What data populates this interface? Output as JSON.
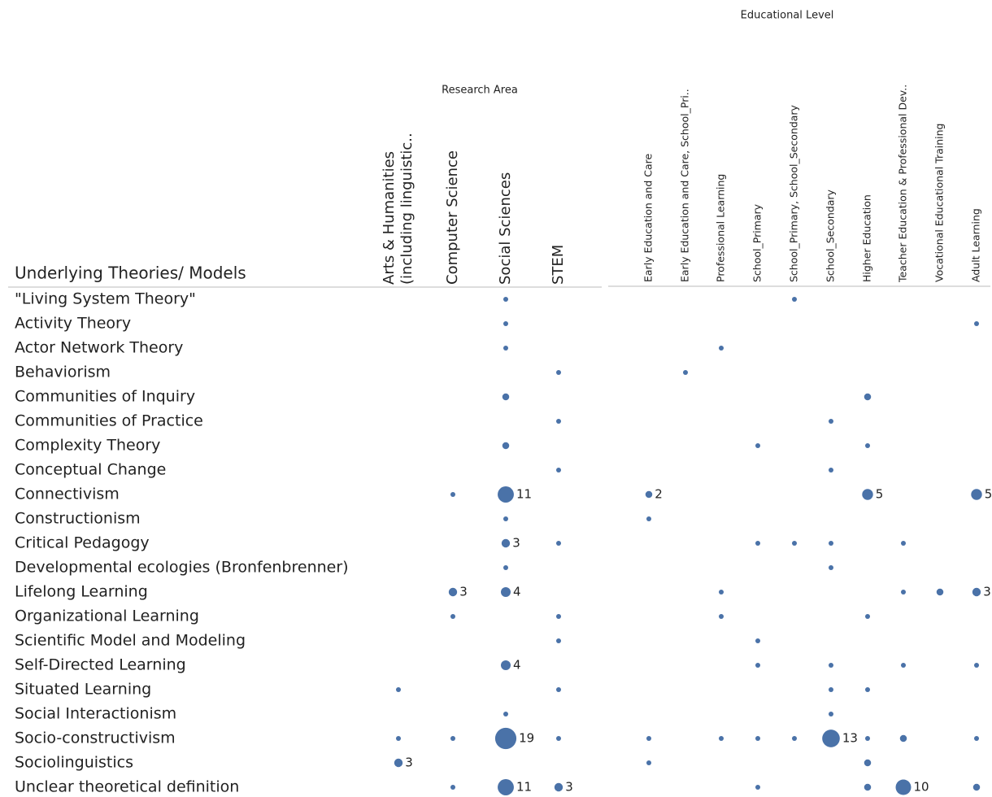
{
  "chart_data": {
    "type": "bubble-matrix",
    "row_header": "Underlying Theories/ Models",
    "color": "#4a72a8",
    "rows": [
      "\"Living System Theory\"",
      "Activity Theory",
      "Actor Network Theory",
      "Behaviorism",
      "Communities of Inquiry",
      "Communities of Practice",
      "Complexity Theory",
      "Conceptual Change",
      "Connectivism",
      "Constructionism",
      "Critical Pedagogy",
      "Developmental ecologies (Bronfenbrenner)",
      "Lifelong Learning",
      "Organizational Learning",
      "Scientific Model and Modeling",
      "Self-Directed Learning",
      "Situated Learning",
      "Social Interactionism",
      "Socio-constructivism",
      "Sociolinguistics",
      "Unclear theoretical definition"
    ],
    "panels": [
      {
        "title": "Research Area",
        "columns": [
          [
            "Arts & Humanities",
            "(including linguistic.."
          ],
          "Computer Science",
          "Social Sciences",
          "STEM"
        ],
        "values": [
          [
            null,
            null,
            1,
            null
          ],
          [
            null,
            null,
            1,
            null
          ],
          [
            null,
            null,
            1,
            null
          ],
          [
            null,
            null,
            null,
            1
          ],
          [
            null,
            null,
            2,
            null
          ],
          [
            null,
            null,
            null,
            1
          ],
          [
            null,
            null,
            2,
            null
          ],
          [
            null,
            null,
            null,
            1
          ],
          [
            null,
            1,
            11,
            null
          ],
          [
            null,
            null,
            1,
            null
          ],
          [
            null,
            null,
            3,
            1
          ],
          [
            null,
            null,
            1,
            null
          ],
          [
            null,
            3,
            4,
            null
          ],
          [
            null,
            1,
            null,
            1
          ],
          [
            null,
            null,
            null,
            1
          ],
          [
            null,
            null,
            4,
            null
          ],
          [
            1,
            null,
            null,
            1
          ],
          [
            null,
            null,
            1,
            null
          ],
          [
            1,
            1,
            19,
            1
          ],
          [
            3,
            null,
            null,
            null
          ],
          [
            null,
            1,
            11,
            3
          ]
        ],
        "value_labels": [
          [
            null,
            null,
            null,
            null
          ],
          [
            null,
            null,
            null,
            null
          ],
          [
            null,
            null,
            null,
            null
          ],
          [
            null,
            null,
            null,
            null
          ],
          [
            null,
            null,
            null,
            null
          ],
          [
            null,
            null,
            null,
            null
          ],
          [
            null,
            null,
            null,
            null
          ],
          [
            null,
            null,
            null,
            null
          ],
          [
            null,
            null,
            "11",
            null
          ],
          [
            null,
            null,
            null,
            null
          ],
          [
            null,
            null,
            "3",
            null
          ],
          [
            null,
            null,
            null,
            null
          ],
          [
            null,
            "3",
            "4",
            null
          ],
          [
            null,
            null,
            null,
            null
          ],
          [
            null,
            null,
            null,
            null
          ],
          [
            null,
            null,
            "4",
            null
          ],
          [
            null,
            null,
            null,
            null
          ],
          [
            null,
            null,
            null,
            null
          ],
          [
            null,
            null,
            "19",
            null
          ],
          [
            "3",
            null,
            null,
            null
          ],
          [
            null,
            null,
            "11",
            "3"
          ]
        ]
      },
      {
        "title": "Educational Level",
        "columns": [
          "Early Education and Care",
          "Early Education and Care, School_Pri..",
          "Professional Learning",
          "School_Primary",
          "School_Primary, School_Secondary",
          "School_Secondary",
          "Higher Education",
          "Teacher Education & Professional Dev..",
          "Vocational Educational Training",
          "Adult Learning"
        ],
        "values": [
          [
            null,
            null,
            null,
            null,
            1,
            null,
            null,
            null,
            null,
            null
          ],
          [
            null,
            null,
            null,
            null,
            null,
            null,
            null,
            null,
            null,
            1
          ],
          [
            null,
            null,
            1,
            null,
            null,
            null,
            null,
            null,
            null,
            null
          ],
          [
            null,
            1,
            null,
            null,
            null,
            null,
            null,
            null,
            null,
            null
          ],
          [
            null,
            null,
            null,
            null,
            null,
            null,
            2,
            null,
            null,
            null
          ],
          [
            null,
            null,
            null,
            null,
            null,
            1,
            null,
            null,
            null,
            null
          ],
          [
            null,
            null,
            null,
            1,
            null,
            null,
            1,
            null,
            null,
            null
          ],
          [
            null,
            null,
            null,
            null,
            null,
            1,
            null,
            null,
            null,
            null
          ],
          [
            2,
            null,
            null,
            null,
            null,
            null,
            5,
            null,
            null,
            5
          ],
          [
            1,
            null,
            null,
            null,
            null,
            null,
            null,
            null,
            null,
            null
          ],
          [
            null,
            null,
            null,
            1,
            1,
            1,
            null,
            1,
            null,
            null
          ],
          [
            null,
            null,
            null,
            null,
            null,
            1,
            null,
            null,
            null,
            null
          ],
          [
            null,
            null,
            1,
            null,
            null,
            null,
            null,
            1,
            2,
            3
          ],
          [
            null,
            null,
            1,
            null,
            null,
            null,
            1,
            null,
            null,
            null
          ],
          [
            null,
            null,
            null,
            1,
            null,
            null,
            null,
            null,
            null,
            null
          ],
          [
            null,
            null,
            null,
            1,
            null,
            1,
            null,
            1,
            null,
            1
          ],
          [
            null,
            null,
            null,
            null,
            null,
            1,
            1,
            null,
            null,
            null
          ],
          [
            null,
            null,
            null,
            null,
            null,
            1,
            null,
            null,
            null,
            null
          ],
          [
            1,
            null,
            1,
            1,
            1,
            13,
            1,
            2,
            null,
            1
          ],
          [
            1,
            null,
            null,
            null,
            null,
            null,
            2,
            null,
            null,
            null
          ],
          [
            null,
            null,
            null,
            1,
            null,
            null,
            2,
            10,
            null,
            2
          ]
        ],
        "value_labels": [
          [
            null,
            null,
            null,
            null,
            null,
            null,
            null,
            null,
            null,
            null
          ],
          [
            null,
            null,
            null,
            null,
            null,
            null,
            null,
            null,
            null,
            null
          ],
          [
            null,
            null,
            null,
            null,
            null,
            null,
            null,
            null,
            null,
            null
          ],
          [
            null,
            null,
            null,
            null,
            null,
            null,
            null,
            null,
            null,
            null
          ],
          [
            null,
            null,
            null,
            null,
            null,
            null,
            null,
            null,
            null,
            null
          ],
          [
            null,
            null,
            null,
            null,
            null,
            null,
            null,
            null,
            null,
            null
          ],
          [
            null,
            null,
            null,
            null,
            null,
            null,
            null,
            null,
            null,
            null
          ],
          [
            null,
            null,
            null,
            null,
            null,
            null,
            null,
            null,
            null,
            null
          ],
          [
            "2",
            null,
            null,
            null,
            null,
            null,
            "5",
            null,
            null,
            "5"
          ],
          [
            null,
            null,
            null,
            null,
            null,
            null,
            null,
            null,
            null,
            null
          ],
          [
            null,
            null,
            null,
            null,
            null,
            null,
            null,
            null,
            null,
            null
          ],
          [
            null,
            null,
            null,
            null,
            null,
            null,
            null,
            null,
            null,
            null
          ],
          [
            null,
            null,
            null,
            null,
            null,
            null,
            null,
            null,
            null,
            "3"
          ],
          [
            null,
            null,
            null,
            null,
            null,
            null,
            null,
            null,
            null,
            null
          ],
          [
            null,
            null,
            null,
            null,
            null,
            null,
            null,
            null,
            null,
            null
          ],
          [
            null,
            null,
            null,
            null,
            null,
            null,
            null,
            null,
            null,
            null
          ],
          [
            null,
            null,
            null,
            null,
            null,
            null,
            null,
            null,
            null,
            null
          ],
          [
            null,
            null,
            null,
            null,
            null,
            null,
            null,
            null,
            null,
            null
          ],
          [
            null,
            null,
            null,
            null,
            null,
            "13",
            null,
            null,
            null,
            null
          ],
          [
            null,
            null,
            null,
            null,
            null,
            null,
            null,
            null,
            null,
            null
          ],
          [
            null,
            null,
            null,
            null,
            null,
            null,
            null,
            "10",
            null,
            null
          ]
        ]
      }
    ]
  }
}
